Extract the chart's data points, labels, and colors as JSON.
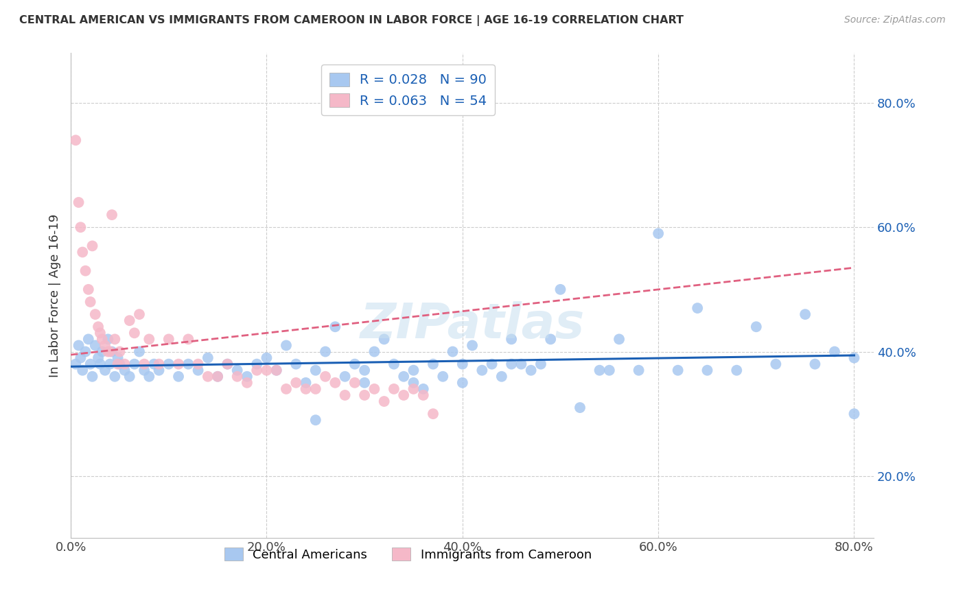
{
  "title": "CENTRAL AMERICAN VS IMMIGRANTS FROM CAMEROON IN LABOR FORCE | AGE 16-19 CORRELATION CHART",
  "source": "Source: ZipAtlas.com",
  "ylabel": "In Labor Force | Age 16-19",
  "series1_label": "Central Americans",
  "series1_R": "0.028",
  "series1_N": "90",
  "series1_color": "#a8c8f0",
  "series1_line_color": "#1a5fb4",
  "series2_label": "Immigrants from Cameroon",
  "series2_R": "0.063",
  "series2_N": "54",
  "series2_color": "#f5b8c8",
  "series2_line_color": "#e06080",
  "bg_color": "#ffffff",
  "grid_color": "#cccccc",
  "legend_R_color": "#1a5fb4",
  "tick_color": "#1a5fb4",
  "xlim": [
    0.0,
    0.82
  ],
  "ylim": [
    0.1,
    0.88
  ],
  "x_ticks": [
    0.0,
    0.2,
    0.4,
    0.6,
    0.8
  ],
  "x_tick_labels": [
    "0.0%",
    "20.0%",
    "40.0%",
    "60.0%",
    "80.0%"
  ],
  "y_ticks": [
    0.2,
    0.4,
    0.6,
    0.8
  ],
  "y_tick_labels": [
    "20.0%",
    "40.0%",
    "60.0%",
    "80.0%"
  ],
  "series1_x": [
    0.005,
    0.008,
    0.01,
    0.012,
    0.015,
    0.018,
    0.02,
    0.022,
    0.025,
    0.028,
    0.03,
    0.032,
    0.035,
    0.038,
    0.04,
    0.042,
    0.045,
    0.048,
    0.05,
    0.055,
    0.06,
    0.065,
    0.07,
    0.075,
    0.08,
    0.085,
    0.09,
    0.1,
    0.11,
    0.12,
    0.13,
    0.14,
    0.15,
    0.16,
    0.17,
    0.18,
    0.19,
    0.2,
    0.21,
    0.22,
    0.23,
    0.24,
    0.25,
    0.26,
    0.27,
    0.28,
    0.29,
    0.3,
    0.31,
    0.32,
    0.33,
    0.34,
    0.35,
    0.36,
    0.37,
    0.38,
    0.39,
    0.4,
    0.41,
    0.42,
    0.43,
    0.44,
    0.45,
    0.46,
    0.47,
    0.48,
    0.49,
    0.5,
    0.52,
    0.54,
    0.56,
    0.58,
    0.6,
    0.62,
    0.64,
    0.65,
    0.68,
    0.7,
    0.72,
    0.75,
    0.76,
    0.78,
    0.8,
    0.8,
    0.45,
    0.3,
    0.25,
    0.35,
    0.4,
    0.55
  ],
  "series1_y": [
    0.38,
    0.41,
    0.39,
    0.37,
    0.4,
    0.42,
    0.38,
    0.36,
    0.41,
    0.39,
    0.38,
    0.4,
    0.37,
    0.42,
    0.38,
    0.4,
    0.36,
    0.39,
    0.38,
    0.37,
    0.36,
    0.38,
    0.4,
    0.37,
    0.36,
    0.38,
    0.37,
    0.38,
    0.36,
    0.38,
    0.37,
    0.39,
    0.36,
    0.38,
    0.37,
    0.36,
    0.38,
    0.39,
    0.37,
    0.41,
    0.38,
    0.35,
    0.37,
    0.4,
    0.44,
    0.36,
    0.38,
    0.37,
    0.4,
    0.42,
    0.38,
    0.36,
    0.37,
    0.34,
    0.38,
    0.36,
    0.4,
    0.35,
    0.41,
    0.37,
    0.38,
    0.36,
    0.42,
    0.38,
    0.37,
    0.38,
    0.42,
    0.5,
    0.31,
    0.37,
    0.42,
    0.37,
    0.59,
    0.37,
    0.47,
    0.37,
    0.37,
    0.44,
    0.38,
    0.46,
    0.38,
    0.4,
    0.39,
    0.3,
    0.38,
    0.35,
    0.29,
    0.35,
    0.38,
    0.37
  ],
  "series2_x": [
    0.005,
    0.008,
    0.01,
    0.012,
    0.015,
    0.018,
    0.02,
    0.022,
    0.025,
    0.028,
    0.03,
    0.032,
    0.035,
    0.038,
    0.04,
    0.042,
    0.045,
    0.048,
    0.05,
    0.055,
    0.06,
    0.065,
    0.07,
    0.075,
    0.08,
    0.09,
    0.1,
    0.11,
    0.12,
    0.13,
    0.14,
    0.15,
    0.16,
    0.17,
    0.18,
    0.19,
    0.2,
    0.21,
    0.22,
    0.23,
    0.24,
    0.25,
    0.26,
    0.27,
    0.28,
    0.29,
    0.3,
    0.31,
    0.32,
    0.33,
    0.34,
    0.35,
    0.36,
    0.37
  ],
  "series2_y": [
    0.74,
    0.64,
    0.6,
    0.56,
    0.53,
    0.5,
    0.48,
    0.57,
    0.46,
    0.44,
    0.43,
    0.42,
    0.41,
    0.4,
    0.4,
    0.62,
    0.42,
    0.38,
    0.4,
    0.38,
    0.45,
    0.43,
    0.46,
    0.38,
    0.42,
    0.38,
    0.42,
    0.38,
    0.42,
    0.38,
    0.36,
    0.36,
    0.38,
    0.36,
    0.35,
    0.37,
    0.37,
    0.37,
    0.34,
    0.35,
    0.34,
    0.34,
    0.36,
    0.35,
    0.33,
    0.35,
    0.33,
    0.34,
    0.32,
    0.34,
    0.33,
    0.34,
    0.33,
    0.3
  ],
  "series1_trendline": [
    0.376,
    0.394
  ],
  "series2_trendline": [
    0.395,
    0.535
  ],
  "watermark": "ZIPatlas"
}
